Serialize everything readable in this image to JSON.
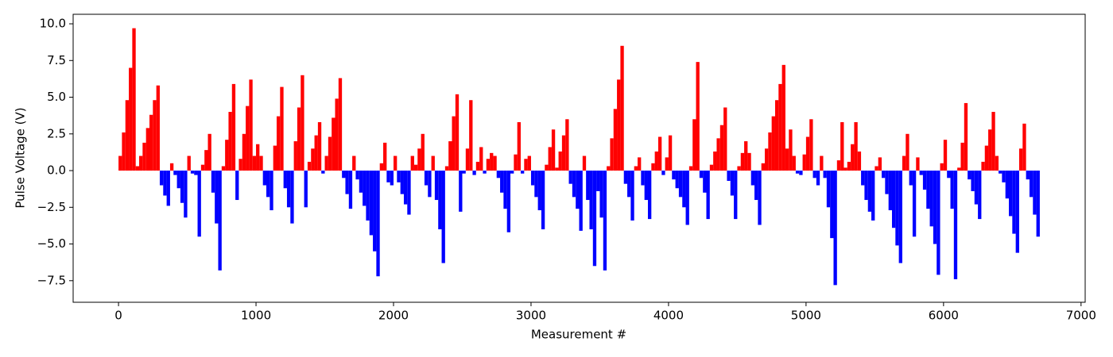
{
  "chart_data": {
    "type": "bar",
    "xlabel": "Measurement #",
    "ylabel": "Pulse Voltage (V)",
    "positive_color": "red",
    "negative_color": "blue",
    "xlim": [
      -330,
      7030
    ],
    "ylim": [
      -8.97,
      10.65
    ],
    "xticks": [
      0,
      1000,
      2000,
      3000,
      4000,
      5000,
      6000,
      7000
    ],
    "yticks": [
      {
        "value": -7.5,
        "label": "−7.5"
      },
      {
        "value": -5.0,
        "label": "−5.0"
      },
      {
        "value": -2.5,
        "label": "−2.5"
      },
      {
        "value": 0,
        "label": "0.0"
      },
      2.5,
      {
        "value": 5,
        "label": "5.0"
      },
      7.5,
      {
        "value": 10,
        "label": "10.0"
      }
    ],
    "x": [
      0,
      25,
      50,
      75,
      100,
      125,
      150,
      175,
      200,
      225,
      250,
      275,
      300,
      325,
      350,
      375,
      400,
      425,
      450,
      475,
      500,
      525,
      550,
      575,
      600,
      625,
      650,
      675,
      700,
      725,
      750,
      775,
      800,
      825,
      850,
      875,
      900,
      925,
      950,
      975,
      1000,
      1025,
      1050,
      1075,
      1100,
      1125,
      1150,
      1175,
      1200,
      1225,
      1250,
      1275,
      1300,
      1325,
      1350,
      1375,
      1400,
      1425,
      1450,
      1475,
      1500,
      1525,
      1550,
      1575,
      1600,
      1625,
      1650,
      1675,
      1700,
      1725,
      1750,
      1775,
      1800,
      1825,
      1850,
      1875,
      1900,
      1925,
      1950,
      1975,
      2000,
      2025,
      2050,
      2075,
      2100,
      2125,
      2150,
      2175,
      2200,
      2225,
      2250,
      2275,
      2300,
      2325,
      2350,
      2375,
      2400,
      2425,
      2450,
      2475,
      2500,
      2525,
      2550,
      2575,
      2600,
      2625,
      2650,
      2675,
      2700,
      2725,
      2750,
      2775,
      2800,
      2825,
      2850,
      2875,
      2900,
      2925,
      2950,
      2975,
      3000,
      3025,
      3050,
      3075,
      3100,
      3125,
      3150,
      3175,
      3200,
      3225,
      3250,
      3275,
      3300,
      3325,
      3350,
      3375,
      3400,
      3425,
      3450,
      3475,
      3500,
      3525,
      3550,
      3575,
      3600,
      3625,
      3650,
      3675,
      3700,
      3725,
      3750,
      3775,
      3800,
      3825,
      3850,
      3875,
      3900,
      3925,
      3950,
      3975,
      4000,
      4025,
      4050,
      4075,
      4100,
      4125,
      4150,
      4175,
      4200,
      4225,
      4250,
      4275,
      4300,
      4325,
      4350,
      4375,
      4400,
      4425,
      4450,
      4475,
      4500,
      4525,
      4550,
      4575,
      4600,
      4625,
      4650,
      4675,
      4700,
      4725,
      4750,
      4775,
      4800,
      4825,
      4850,
      4875,
      4900,
      4925,
      4950,
      4975,
      5000,
      5025,
      5050,
      5075,
      5100,
      5125,
      5150,
      5175,
      5200,
      5225,
      5250,
      5275,
      5300,
      5325,
      5350,
      5375,
      5400,
      5425,
      5450,
      5475,
      5500,
      5525,
      5550,
      5575,
      5600,
      5625,
      5650,
      5675,
      5700,
      5725,
      5750,
      5775,
      5800,
      5825,
      5850,
      5875,
      5900,
      5925,
      5950,
      5975,
      6000,
      6025,
      6050,
      6075,
      6100,
      6125,
      6150,
      6175,
      6200,
      6225,
      6250,
      6275,
      6300,
      6325,
      6350,
      6375,
      6400,
      6425,
      6450,
      6475,
      6500,
      6525,
      6550,
      6575,
      6600,
      6625,
      6650,
      6675
    ],
    "values": [
      1.0,
      2.6,
      4.8,
      7.0,
      9.7,
      0.3,
      1.0,
      1.9,
      2.9,
      3.8,
      4.8,
      5.8,
      -1.0,
      -1.7,
      -2.4,
      0.5,
      -0.3,
      -1.2,
      -2.2,
      -3.2,
      1.0,
      -0.2,
      -0.3,
      -4.5,
      0.4,
      1.4,
      2.5,
      -1.5,
      -3.6,
      -6.8,
      0.3,
      2.1,
      4.0,
      5.9,
      -2.0,
      0.8,
      2.5,
      4.4,
      6.2,
      1.0,
      1.8,
      1.0,
      -1.0,
      -1.8,
      -2.7,
      1.7,
      3.7,
      5.7,
      -1.2,
      -2.5,
      -3.6,
      2.0,
      4.3,
      6.5,
      -2.5,
      0.6,
      1.5,
      2.4,
      3.3,
      -0.2,
      1.0,
      2.3,
      3.6,
      4.9,
      6.3,
      -0.5,
      -1.6,
      -2.6,
      1.0,
      -0.6,
      -1.5,
      -2.4,
      -3.4,
      -4.4,
      -5.5,
      -7.2,
      0.5,
      1.9,
      -0.8,
      -1.0,
      1.0,
      -0.8,
      -1.6,
      -2.3,
      -3.0,
      1.0,
      0.4,
      1.5,
      2.5,
      -1.0,
      -1.8,
      1.0,
      -2.0,
      -4.0,
      -6.3,
      0.3,
      2.0,
      3.7,
      5.2,
      -2.8,
      -0.2,
      1.5,
      4.8,
      -0.3,
      0.6,
      1.6,
      -0.2,
      0.8,
      1.2,
      1.0,
      -0.5,
      -1.5,
      -2.6,
      -4.2,
      -0.2,
      1.1,
      3.3,
      -0.2,
      0.8,
      1.0,
      -1.0,
      -1.8,
      -2.7,
      -4.0,
      0.4,
      1.6,
      2.8,
      0.2,
      1.3,
      2.4,
      3.5,
      -0.9,
      -1.8,
      -2.6,
      -4.1,
      1.0,
      -2.0,
      -4.0,
      -6.5,
      -1.4,
      -3.2,
      -6.8,
      0.3,
      2.2,
      4.2,
      6.2,
      8.5,
      -0.9,
      -1.8,
      -3.4,
      0.3,
      0.9,
      -1.0,
      -2.0,
      -3.3,
      0.5,
      1.3,
      2.3,
      -0.3,
      0.9,
      2.4,
      -0.6,
      -1.2,
      -1.8,
      -2.5,
      -3.7,
      0.3,
      3.5,
      7.4,
      -0.5,
      -1.5,
      -3.3,
      0.4,
      1.3,
      2.2,
      3.1,
      4.3,
      -0.7,
      -1.7,
      -3.3,
      0.3,
      1.2,
      2.0,
      1.2,
      -1.0,
      -2.0,
      -3.7,
      0.5,
      1.5,
      2.6,
      3.7,
      4.8,
      5.9,
      7.2,
      1.5,
      2.8,
      1.0,
      -0.2,
      -0.3,
      1.1,
      2.3,
      3.5,
      -0.5,
      -1.0,
      1.0,
      -0.5,
      -2.5,
      -4.6,
      -7.8,
      0.7,
      3.3,
      0.2,
      0.6,
      1.8,
      3.3,
      1.3,
      -1.0,
      -2.0,
      -2.8,
      -3.4,
      0.3,
      0.9,
      -0.5,
      -1.6,
      -2.7,
      -3.9,
      -5.1,
      -6.3,
      1.0,
      2.5,
      -1.0,
      -4.5,
      0.9,
      -0.3,
      -1.3,
      -2.6,
      -3.8,
      -5.0,
      -7.1,
      0.5,
      2.1,
      -0.5,
      -2.6,
      -7.4,
      0.2,
      1.9,
      4.6,
      -0.6,
      -1.4,
      -2.3,
      -3.3,
      0.6,
      1.7,
      2.8,
      4.0,
      1.0,
      -0.2,
      -0.8,
      -1.9,
      -3.1,
      -4.3,
      -5.6,
      1.5,
      3.2,
      -0.6,
      -1.8,
      -3.0,
      -4.5
    ]
  }
}
